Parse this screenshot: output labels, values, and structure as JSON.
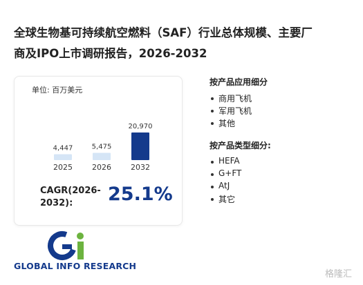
{
  "header": {
    "title_lines": [
      "全球生物基可持续航空燃料（SAF）行业总体规模、主要厂",
      "商及IPO上市调研报告，2026-2032"
    ]
  },
  "chart_data": {
    "type": "bar",
    "unit_label": "单位: 百万美元",
    "categories": [
      "2025",
      "2026",
      "2032"
    ],
    "values": [
      4447,
      5475,
      20970
    ],
    "value_labels": [
      "4,447",
      "5,475",
      "20,970"
    ],
    "colors": [
      "#d5e5f6",
      "#d5e5f6",
      "#143a8c"
    ]
  },
  "cagr": {
    "label": "CAGR(2026-2032):",
    "value_label": "25.1%"
  },
  "segments": [
    {
      "title": "按产品应用细分",
      "items": [
        "商用飞机",
        "军用飞机",
        "其他"
      ]
    },
    {
      "title": "按产品类型细分:",
      "items": [
        "HEFA",
        "G+FT",
        "AtJ",
        "其它"
      ]
    }
  ],
  "logo": {
    "text": "GLOBAL INFO RESEARCH"
  },
  "footer": {
    "watermark": "格隆汇"
  }
}
